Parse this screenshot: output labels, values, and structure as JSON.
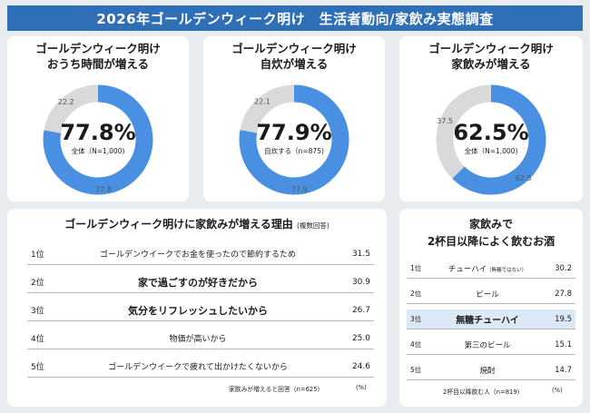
{
  "header": {
    "title": "2026年ゴールデンウィーク明け　生活者動向/家飲み実態調査"
  },
  "colors": {
    "primary": "#4a90e2",
    "rest": "#d9d9d9",
    "header_bg": "#2e6fb8",
    "highlight": "#dbe9f7"
  },
  "chart_data": [
    {
      "type": "pie",
      "title_line1": "ゴールデンウィーク明け",
      "title_line2": "おうち時間が増える",
      "main_value": "77.8%",
      "note": "全体（N=1,000)",
      "slices": [
        {
          "label": "77.8",
          "value": 77.8
        },
        {
          "label": "22.2",
          "value": 22.2
        }
      ]
    },
    {
      "type": "pie",
      "title_line1": "ゴールデンウィーク明け",
      "title_line2": "自炊が増える",
      "main_value": "77.9%",
      "note": "自炊する（n=875)",
      "slices": [
        {
          "label": "77.9",
          "value": 77.9
        },
        {
          "label": "22.1",
          "value": 22.1
        }
      ]
    },
    {
      "type": "pie",
      "title_line1": "ゴールデンウィーク明け",
      "title_line2": "家飲みが増える",
      "main_value": "62.5%",
      "note": "全体（N=1,000)",
      "slices": [
        {
          "label": "62.5",
          "value": 62.5
        },
        {
          "label": "37.5",
          "value": 37.5
        }
      ]
    },
    {
      "type": "table",
      "title": "ゴールデンウィーク明けに家飲みが増える理由",
      "title_note": "(複数回答)",
      "rows": [
        {
          "rank": "1位",
          "reason": "ゴールデンウイークでお金を使ったので節約するため",
          "value": "31.5",
          "bold": false
        },
        {
          "rank": "2位",
          "reason": "家で過ごすのが好きだから",
          "value": "30.9",
          "bold": true
        },
        {
          "rank": "3位",
          "reason": "気分をリフレッシュしたいから",
          "value": "26.7",
          "bold": true
        },
        {
          "rank": "4位",
          "reason": "物価が高いから",
          "value": "25.0",
          "bold": false
        },
        {
          "rank": "5位",
          "reason": "ゴールデンウイークで疲れて出かけたくないから",
          "value": "24.6",
          "bold": false
        }
      ],
      "footnote": "家飲みが増えると回答（n=625)",
      "unit": "(%)"
    },
    {
      "type": "table",
      "title_line1": "家飲みで",
      "title_line2": "2杯目以降によく飲むお酒",
      "rows": [
        {
          "rank": "1位",
          "name": "チューハイ",
          "name_note": "（無糖ではない）",
          "value": "30.2",
          "bold": false,
          "highlight": false
        },
        {
          "rank": "2位",
          "name": "ビール",
          "name_note": "",
          "value": "27.8",
          "bold": false,
          "highlight": false
        },
        {
          "rank": "3位",
          "name": "無糖チューハイ",
          "name_note": "",
          "value": "19.5",
          "bold": true,
          "highlight": true
        },
        {
          "rank": "4位",
          "name": "第三のビール",
          "name_note": "",
          "value": "15.1",
          "bold": false,
          "highlight": false
        },
        {
          "rank": "5位",
          "name": "焼酎",
          "name_note": "",
          "value": "14.7",
          "bold": false,
          "highlight": false
        }
      ],
      "footnote": "2杯目以降飲む人（n=819)",
      "unit": "(%)"
    }
  ]
}
